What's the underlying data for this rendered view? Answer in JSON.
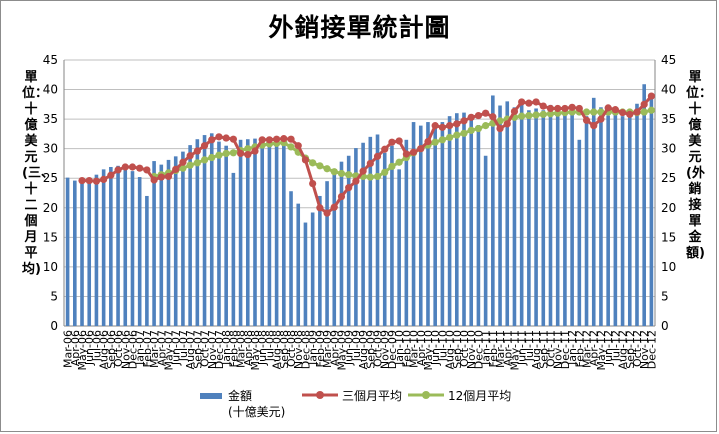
{
  "chart_data": {
    "type": "bar",
    "title": "外銷接單統計圖",
    "ylabel_left": "單位：十億美元(三、十二個月平均)",
    "ylabel_right": "單位：十億美元(外銷接單金額)",
    "ylim": [
      0,
      45
    ],
    "yticks": [
      0,
      5,
      10,
      15,
      20,
      25,
      30,
      35,
      40,
      45
    ],
    "grid": true,
    "legend_position": "bottom",
    "colors": {
      "bar": "#4f81bd",
      "avg3": "#c0504d",
      "avg12": "#9bbb59",
      "grid": "#bfbfbf"
    },
    "categories": [
      "Mar-06",
      "Apr-06",
      "May-06",
      "Jun-06",
      "Jul-06",
      "Aug-06",
      "Sep-06",
      "Oct-06",
      "Nov-06",
      "Dec-06",
      "Jan-07",
      "Feb-07",
      "Mar-07",
      "Apr-07",
      "May-07",
      "Jun-07",
      "Jul-07",
      "Aug-07",
      "Sep-07",
      "Oct-07",
      "Nov-07",
      "Dec-07",
      "Jan-08",
      "Feb-08",
      "Mar-08",
      "Apr-08",
      "May-08",
      "Jun-08",
      "Jul-08",
      "Aug-08",
      "Sep-08",
      "Oct-08",
      "Nov-08",
      "Dec-08",
      "Jan-09",
      "Feb-09",
      "Mar-09",
      "Apr-09",
      "May-09",
      "Jun-09",
      "Jul-09",
      "Aug-09",
      "Sep-09",
      "Oct-09",
      "Nov-09",
      "Dec-09",
      "Jan-10",
      "Feb-10",
      "Mar-10",
      "Apr-10",
      "May-10",
      "Jun-10",
      "Jul-10",
      "Aug-10",
      "Sep-10",
      "Oct-10",
      "Nov-10",
      "Dec-10",
      "Jan-11",
      "Feb-11",
      "Mar-11",
      "Apr-11",
      "May-11",
      "Jun-11",
      "Jul-11",
      "Aug-11",
      "Sep-11",
      "Oct-11",
      "Nov-11",
      "Dec-11",
      "Jan-12",
      "Feb-12",
      "Mar-12",
      "Apr-12",
      "May-12",
      "Jun-12",
      "Jul-12",
      "Aug-12",
      "Sep-12",
      "Oct-12",
      "Nov-12",
      "Dec-12"
    ],
    "series": [
      {
        "name": "金額",
        "name_sub": "(十億美元)",
        "type": "bar",
        "axis": "right",
        "values": [
          25.1,
          24.6,
          24.8,
          24.3,
          25.6,
          26.5,
          26.9,
          27.1,
          26.8,
          26.2,
          25.2,
          22.0,
          27.9,
          27.3,
          28.1,
          28.7,
          29.5,
          30.6,
          31.6,
          32.3,
          32.6,
          31.2,
          30.5,
          25.9,
          31.5,
          31.6,
          31.7,
          31.9,
          32.0,
          31.7,
          31.6,
          22.8,
          20.7,
          17.5,
          19.2,
          22.0,
          24.5,
          26.0,
          27.8,
          28.8,
          30.1,
          31.0,
          32.0,
          32.4,
          29.3,
          30.5,
          26.5,
          31.5,
          34.5,
          33.9,
          34.5,
          34.3,
          34.5,
          35.5,
          36.0,
          36.1,
          35.8,
          34.0,
          28.8,
          39.0,
          37.3,
          38.0,
          37.0,
          37.6,
          36.5,
          36.8,
          36.5,
          37.4,
          37.0,
          37.0,
          36.1,
          31.5,
          35.5,
          38.6,
          37.0,
          35.6,
          36.7,
          35.5,
          36.2,
          37.6,
          40.9,
          38.6
        ]
      },
      {
        "name": "三個月平均",
        "type": "line",
        "axis": "left",
        "values": [
          null,
          null,
          24.6,
          24.6,
          24.5,
          24.8,
          25.5,
          26.4,
          26.9,
          26.9,
          26.7,
          26.4,
          24.7,
          25.2,
          25.3,
          26.5,
          27.7,
          28.8,
          29.6,
          30.5,
          31.5,
          32.0,
          31.8,
          31.6,
          29.2,
          29.0,
          29.6,
          31.5,
          31.5,
          31.6,
          31.7,
          31.6,
          30.5,
          28.1,
          24.1,
          20.0,
          19.1,
          20.1,
          21.9,
          23.4,
          24.5,
          26.2,
          27.5,
          28.7,
          29.9,
          31.1,
          31.3,
          29.1,
          29.4,
          30.0,
          31.2,
          33.9,
          33.6,
          33.9,
          34.2,
          34.7,
          35.3,
          35.6,
          36.0,
          35.4,
          33.4,
          34.2,
          36.3,
          37.9,
          37.7,
          37.9,
          37.2,
          36.8,
          36.8,
          36.8,
          37.0,
          36.8,
          34.8,
          33.9,
          35.0,
          36.9,
          36.6,
          36.1,
          35.8,
          36.2,
          37.5,
          38.9
        ]
      },
      {
        "name": "12個月平均",
        "type": "line",
        "axis": "left",
        "values": [
          null,
          null,
          null,
          null,
          null,
          null,
          null,
          null,
          null,
          null,
          null,
          null,
          25.3,
          25.6,
          25.9,
          26.3,
          26.7,
          27.2,
          27.6,
          28.1,
          28.5,
          28.9,
          29.2,
          29.3,
          29.7,
          30.0,
          30.3,
          30.6,
          30.8,
          30.9,
          31.0,
          30.3,
          29.4,
          28.4,
          27.6,
          27.1,
          26.6,
          26.1,
          25.8,
          25.6,
          25.4,
          25.3,
          25.2,
          25.3,
          26.0,
          27.0,
          27.7,
          28.5,
          29.3,
          30.0,
          30.6,
          31.1,
          31.5,
          31.9,
          32.3,
          32.6,
          33.1,
          33.4,
          33.9,
          34.3,
          34.7,
          35.0,
          35.3,
          35.5,
          35.6,
          35.7,
          35.8,
          35.9,
          36.0,
          36.1,
          36.2,
          36.2,
          36.2,
          36.2,
          36.2,
          36.2,
          36.2,
          36.2,
          36.2,
          36.1,
          36.2,
          36.5
        ]
      }
    ]
  }
}
